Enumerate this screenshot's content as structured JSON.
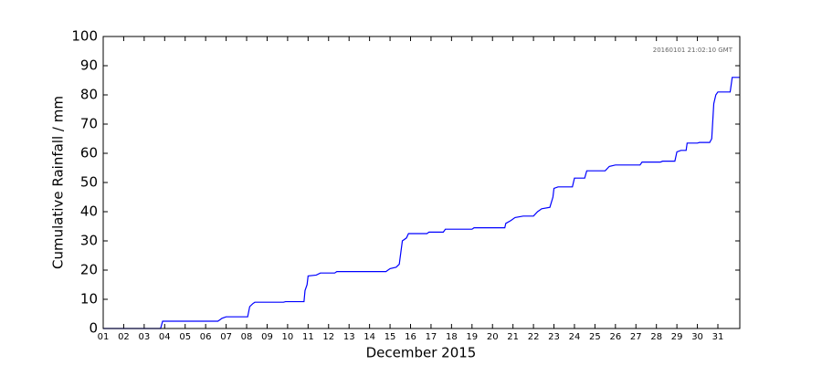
{
  "chart_data": {
    "type": "line",
    "annotation": "20160101 21:02:10 GMT",
    "xlabel": "December 2015",
    "ylabel": "Cumulative Rainfall / mm",
    "xlim": [
      1,
      32.07
    ],
    "ylim": [
      0,
      100
    ],
    "yticks": [
      0,
      10,
      20,
      30,
      40,
      50,
      60,
      70,
      80,
      90,
      100
    ],
    "xticks": [
      {
        "value": 1,
        "label": "01"
      },
      {
        "value": 2,
        "label": "02"
      },
      {
        "value": 3,
        "label": "03"
      },
      {
        "value": 4,
        "label": "04"
      },
      {
        "value": 5,
        "label": "05"
      },
      {
        "value": 6,
        "label": "06"
      },
      {
        "value": 7,
        "label": "07"
      },
      {
        "value": 8,
        "label": "08"
      },
      {
        "value": 9,
        "label": "09"
      },
      {
        "value": 10,
        "label": "10"
      },
      {
        "value": 11,
        "label": "11"
      },
      {
        "value": 12,
        "label": "12"
      },
      {
        "value": 13,
        "label": "13"
      },
      {
        "value": 14,
        "label": "14"
      },
      {
        "value": 15,
        "label": "15"
      },
      {
        "value": 16,
        "label": "16"
      },
      {
        "value": 17,
        "label": "17"
      },
      {
        "value": 18,
        "label": "18"
      },
      {
        "value": 19,
        "label": "19"
      },
      {
        "value": 20,
        "label": "20"
      },
      {
        "value": 21,
        "label": "21"
      },
      {
        "value": 22,
        "label": "22"
      },
      {
        "value": 23,
        "label": "23"
      },
      {
        "value": 24,
        "label": "24"
      },
      {
        "value": 25,
        "label": "25"
      },
      {
        "value": 26,
        "label": "26"
      },
      {
        "value": 27,
        "label": "27"
      },
      {
        "value": 28,
        "label": "28"
      },
      {
        "value": 29,
        "label": "29"
      },
      {
        "value": 30,
        "label": "30"
      },
      {
        "value": 31,
        "label": "31"
      }
    ],
    "series": [
      {
        "color": "#0000ff",
        "x": [
          1,
          3.8,
          3.9,
          6.6,
          6.8,
          7,
          8.05,
          8.15,
          8.3,
          8.4,
          9.8,
          9.9,
          10.8,
          10.85,
          10.95,
          11.0,
          11.4,
          11.6,
          12.3,
          12.4,
          14.8,
          15,
          15.3,
          15.45,
          15.6,
          15.8,
          15.9,
          16.8,
          16.9,
          17.6,
          17.7,
          19.0,
          19.1,
          20.6,
          20.65,
          20.9,
          21.1,
          21.5,
          22.0,
          22.2,
          22.4,
          22.8,
          22.95,
          23.0,
          23.2,
          23.9,
          24.0,
          24.5,
          24.6,
          25.5,
          25.7,
          26.0,
          27.2,
          27.3,
          28.2,
          28.3,
          28.9,
          29.0,
          29.2,
          29.45,
          29.5,
          30.0,
          30.1,
          30.6,
          30.7,
          30.8,
          30.9,
          31.0,
          31.6,
          31.7,
          32.07
        ],
        "values": [
          0,
          0,
          2.5,
          2.5,
          3.5,
          4,
          4,
          7.5,
          8.5,
          9,
          9,
          9.2,
          9.2,
          13,
          15,
          18,
          18.3,
          19,
          19,
          19.5,
          19.5,
          20.5,
          21,
          22,
          30,
          31,
          32.5,
          32.5,
          33,
          33,
          34,
          34,
          34.5,
          34.5,
          36,
          37,
          38,
          38.5,
          38.5,
          40,
          41,
          41.5,
          45,
          48,
          48.5,
          48.5,
          51.5,
          51.5,
          54,
          54,
          55.5,
          56,
          56,
          57,
          57,
          57.3,
          57.3,
          60.5,
          61,
          61,
          63.5,
          63.5,
          63.7,
          63.7,
          65,
          77,
          80,
          81,
          81,
          86,
          86
        ]
      }
    ]
  }
}
